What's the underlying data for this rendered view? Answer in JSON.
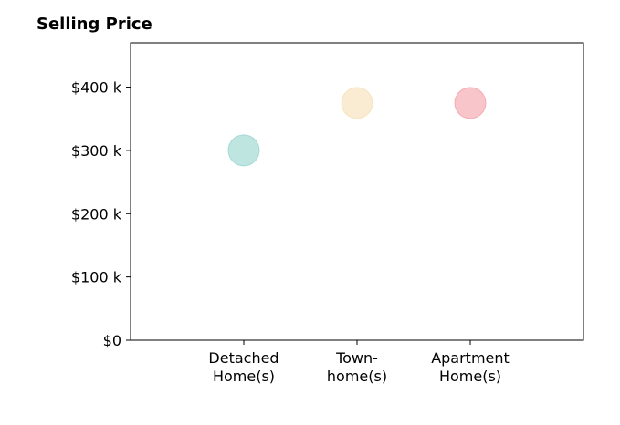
{
  "chart_data": {
    "type": "scatter",
    "title": "Selling Price",
    "xlabel": "",
    "ylabel": "",
    "categories": [
      [
        "Detached",
        "Home(s)"
      ],
      [
        "Town-",
        "home(s)"
      ],
      [
        "Apartment",
        "Home(s)"
      ]
    ],
    "values": [
      300000,
      375000,
      375000
    ],
    "colors": [
      "#7fccc4",
      "#f3d9a6",
      "#f28c95"
    ],
    "ylim": [
      0,
      470000
    ],
    "yticks": [
      0,
      100000,
      200000,
      300000,
      400000
    ],
    "ytick_labels": [
      "$0",
      "$100 k",
      "$200 k",
      "$300 k",
      "$400 k"
    ],
    "grid": false,
    "legend": false
  }
}
